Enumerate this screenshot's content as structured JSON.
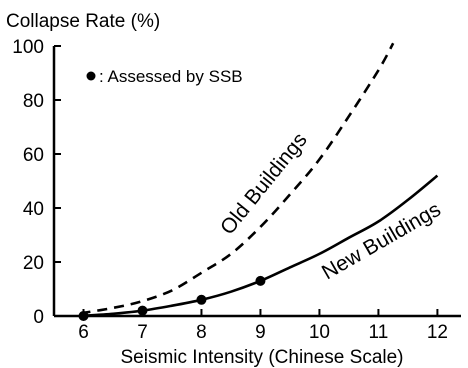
{
  "chart_data": {
    "type": "line",
    "ylabel": "Collapse Rate (%)",
    "xlabel": "Seismic Intensity (Chinese Scale)",
    "xlim": [
      5.5,
      12.4
    ],
    "ylim": [
      0,
      100
    ],
    "x_ticks": [
      "6",
      "7",
      "8",
      "9",
      "10",
      "11",
      "12"
    ],
    "y_ticks": [
      "0",
      "20",
      "40",
      "60",
      "80",
      "100"
    ],
    "grid": false,
    "legend_text": "●: Assessed by SSB",
    "series": [
      {
        "name": "Old Buildings",
        "style": "dashed",
        "x": [
          5.95,
          6.5,
          7,
          7.5,
          8,
          8.5,
          9,
          9.5,
          10,
          10.5,
          11,
          11.25
        ],
        "values": [
          1,
          3,
          5.5,
          9.5,
          16,
          23,
          33,
          45,
          58,
          74,
          91,
          101
        ]
      },
      {
        "name": "New Buildings",
        "style": "solid",
        "x": [
          5.95,
          6.5,
          7,
          7.5,
          8,
          8.5,
          9,
          9.5,
          10,
          10.5,
          11,
          11.5,
          12
        ],
        "values": [
          0,
          0.8,
          2,
          3.8,
          6,
          9,
          13,
          18,
          23,
          29,
          35,
          43,
          52
        ]
      }
    ],
    "points": {
      "name": "Assessed by SSB",
      "x": [
        6,
        7,
        8,
        9
      ],
      "values": [
        0,
        2,
        6,
        13
      ]
    },
    "colors": {
      "line": "#000000",
      "axis": "#000000"
    }
  }
}
